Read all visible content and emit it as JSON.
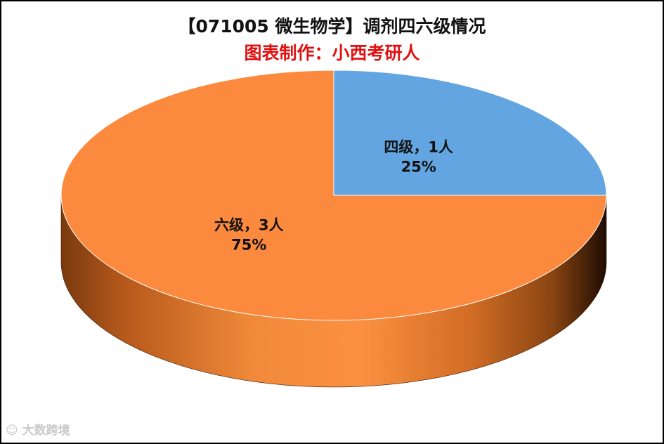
{
  "title": "【071005 微生物学】调剂四六级情况",
  "subtitle": "图表制作：小西考研人",
  "watermark": "大数跨境",
  "chart_data": {
    "type": "pie",
    "is_3d": true,
    "legend": "none",
    "slices": [
      {
        "label": "四级，1人",
        "value": 1,
        "percent": "25%",
        "color": "#62a5e0"
      },
      {
        "label": "六级，3人",
        "value": 3,
        "percent": "75%",
        "color": "#fb8a3e"
      }
    ]
  }
}
